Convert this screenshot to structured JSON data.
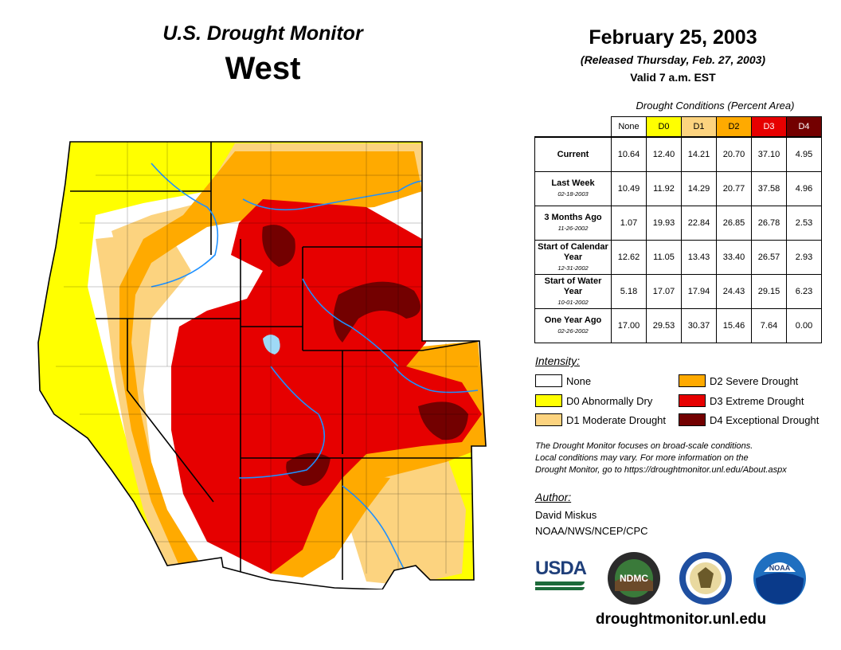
{
  "header": {
    "title": "U.S. Drought Monitor",
    "region": "West",
    "date": "February 25, 2003",
    "released": "(Released Thursday, Feb. 27, 2003)",
    "valid": "Valid 7 a.m. EST"
  },
  "table": {
    "caption": "Drought Conditions (Percent Area)",
    "columns": [
      {
        "label": "None",
        "color": "#ffffff",
        "text": "#000000"
      },
      {
        "label": "D0",
        "color": "#ffff00",
        "text": "#000000"
      },
      {
        "label": "D1",
        "color": "#fcd37f",
        "text": "#000000"
      },
      {
        "label": "D2",
        "color": "#ffaa00",
        "text": "#000000"
      },
      {
        "label": "D3",
        "color": "#e60000",
        "text": "#ffffff"
      },
      {
        "label": "D4",
        "color": "#730000",
        "text": "#ffffff"
      }
    ],
    "rows": [
      {
        "label": "Current",
        "sub": "",
        "values": [
          "10.64",
          "12.40",
          "14.21",
          "20.70",
          "37.10",
          "4.95"
        ]
      },
      {
        "label": "Last Week",
        "sub": "02-18-2003",
        "values": [
          "10.49",
          "11.92",
          "14.29",
          "20.77",
          "37.58",
          "4.96"
        ]
      },
      {
        "label": "3 Months Ago",
        "sub": "11-26-2002",
        "values": [
          "1.07",
          "19.93",
          "22.84",
          "26.85",
          "26.78",
          "2.53"
        ]
      },
      {
        "label": "Start of Calendar Year",
        "sub": "12-31-2002",
        "values": [
          "12.62",
          "11.05",
          "13.43",
          "33.40",
          "26.57",
          "2.93"
        ]
      },
      {
        "label": "Start of Water Year",
        "sub": "10-01-2002",
        "values": [
          "5.18",
          "17.07",
          "17.94",
          "24.43",
          "29.15",
          "6.23"
        ]
      },
      {
        "label": "One Year Ago",
        "sub": "02-26-2002",
        "values": [
          "17.00",
          "29.53",
          "30.37",
          "15.46",
          "7.64",
          "0.00"
        ]
      }
    ]
  },
  "legend": {
    "title": "Intensity:",
    "items": [
      {
        "label": "None",
        "color": "#ffffff"
      },
      {
        "label": "D0 Abnormally Dry",
        "color": "#ffff00"
      },
      {
        "label": "D1 Moderate Drought",
        "color": "#fcd37f"
      },
      {
        "label": "D2 Severe Drought",
        "color": "#ffaa00"
      },
      {
        "label": "D3 Extreme Drought",
        "color": "#e60000"
      },
      {
        "label": "D4 Exceptional Drought",
        "color": "#730000"
      }
    ]
  },
  "note": {
    "line1": "The Drought Monitor focuses on broad-scale conditions.",
    "line2": "Local conditions may vary. For more information on the",
    "line3": "Drought Monitor, go to https://droughtmonitor.unl.edu/About.aspx"
  },
  "author": {
    "title": "Author:",
    "name": "David Miskus",
    "org": "NOAA/NWS/NCEP/CPC"
  },
  "logos": {
    "usda": "USDA",
    "ndmc": "NDMC",
    "noaa": "NOAA"
  },
  "footer_url": "droughtmonitor.unl.edu"
}
